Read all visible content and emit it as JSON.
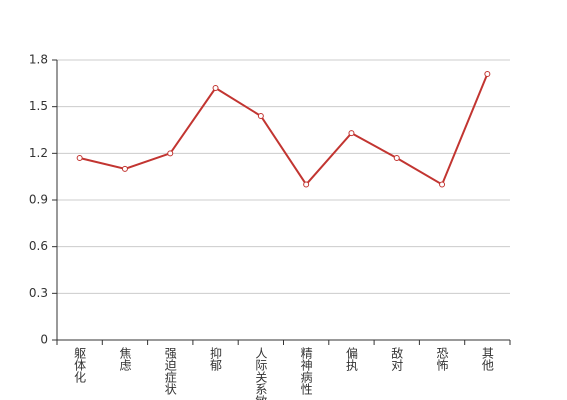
{
  "chart_data": {
    "type": "line",
    "categories": [
      "躯体化",
      "焦虑",
      "强迫症状",
      "抑郁",
      "人际关系敏感",
      "精神病性",
      "偏执",
      "敌对",
      "恐怖",
      "其他"
    ],
    "values": [
      1.17,
      1.1,
      1.2,
      1.62,
      1.44,
      1.0,
      1.33,
      1.17,
      1.0,
      1.71
    ],
    "color": "#c23531",
    "ylim": [
      0,
      1.8
    ],
    "yticks": [
      0,
      0.3,
      0.6,
      0.9,
      1.2,
      1.5,
      1.8
    ],
    "grid": true
  }
}
